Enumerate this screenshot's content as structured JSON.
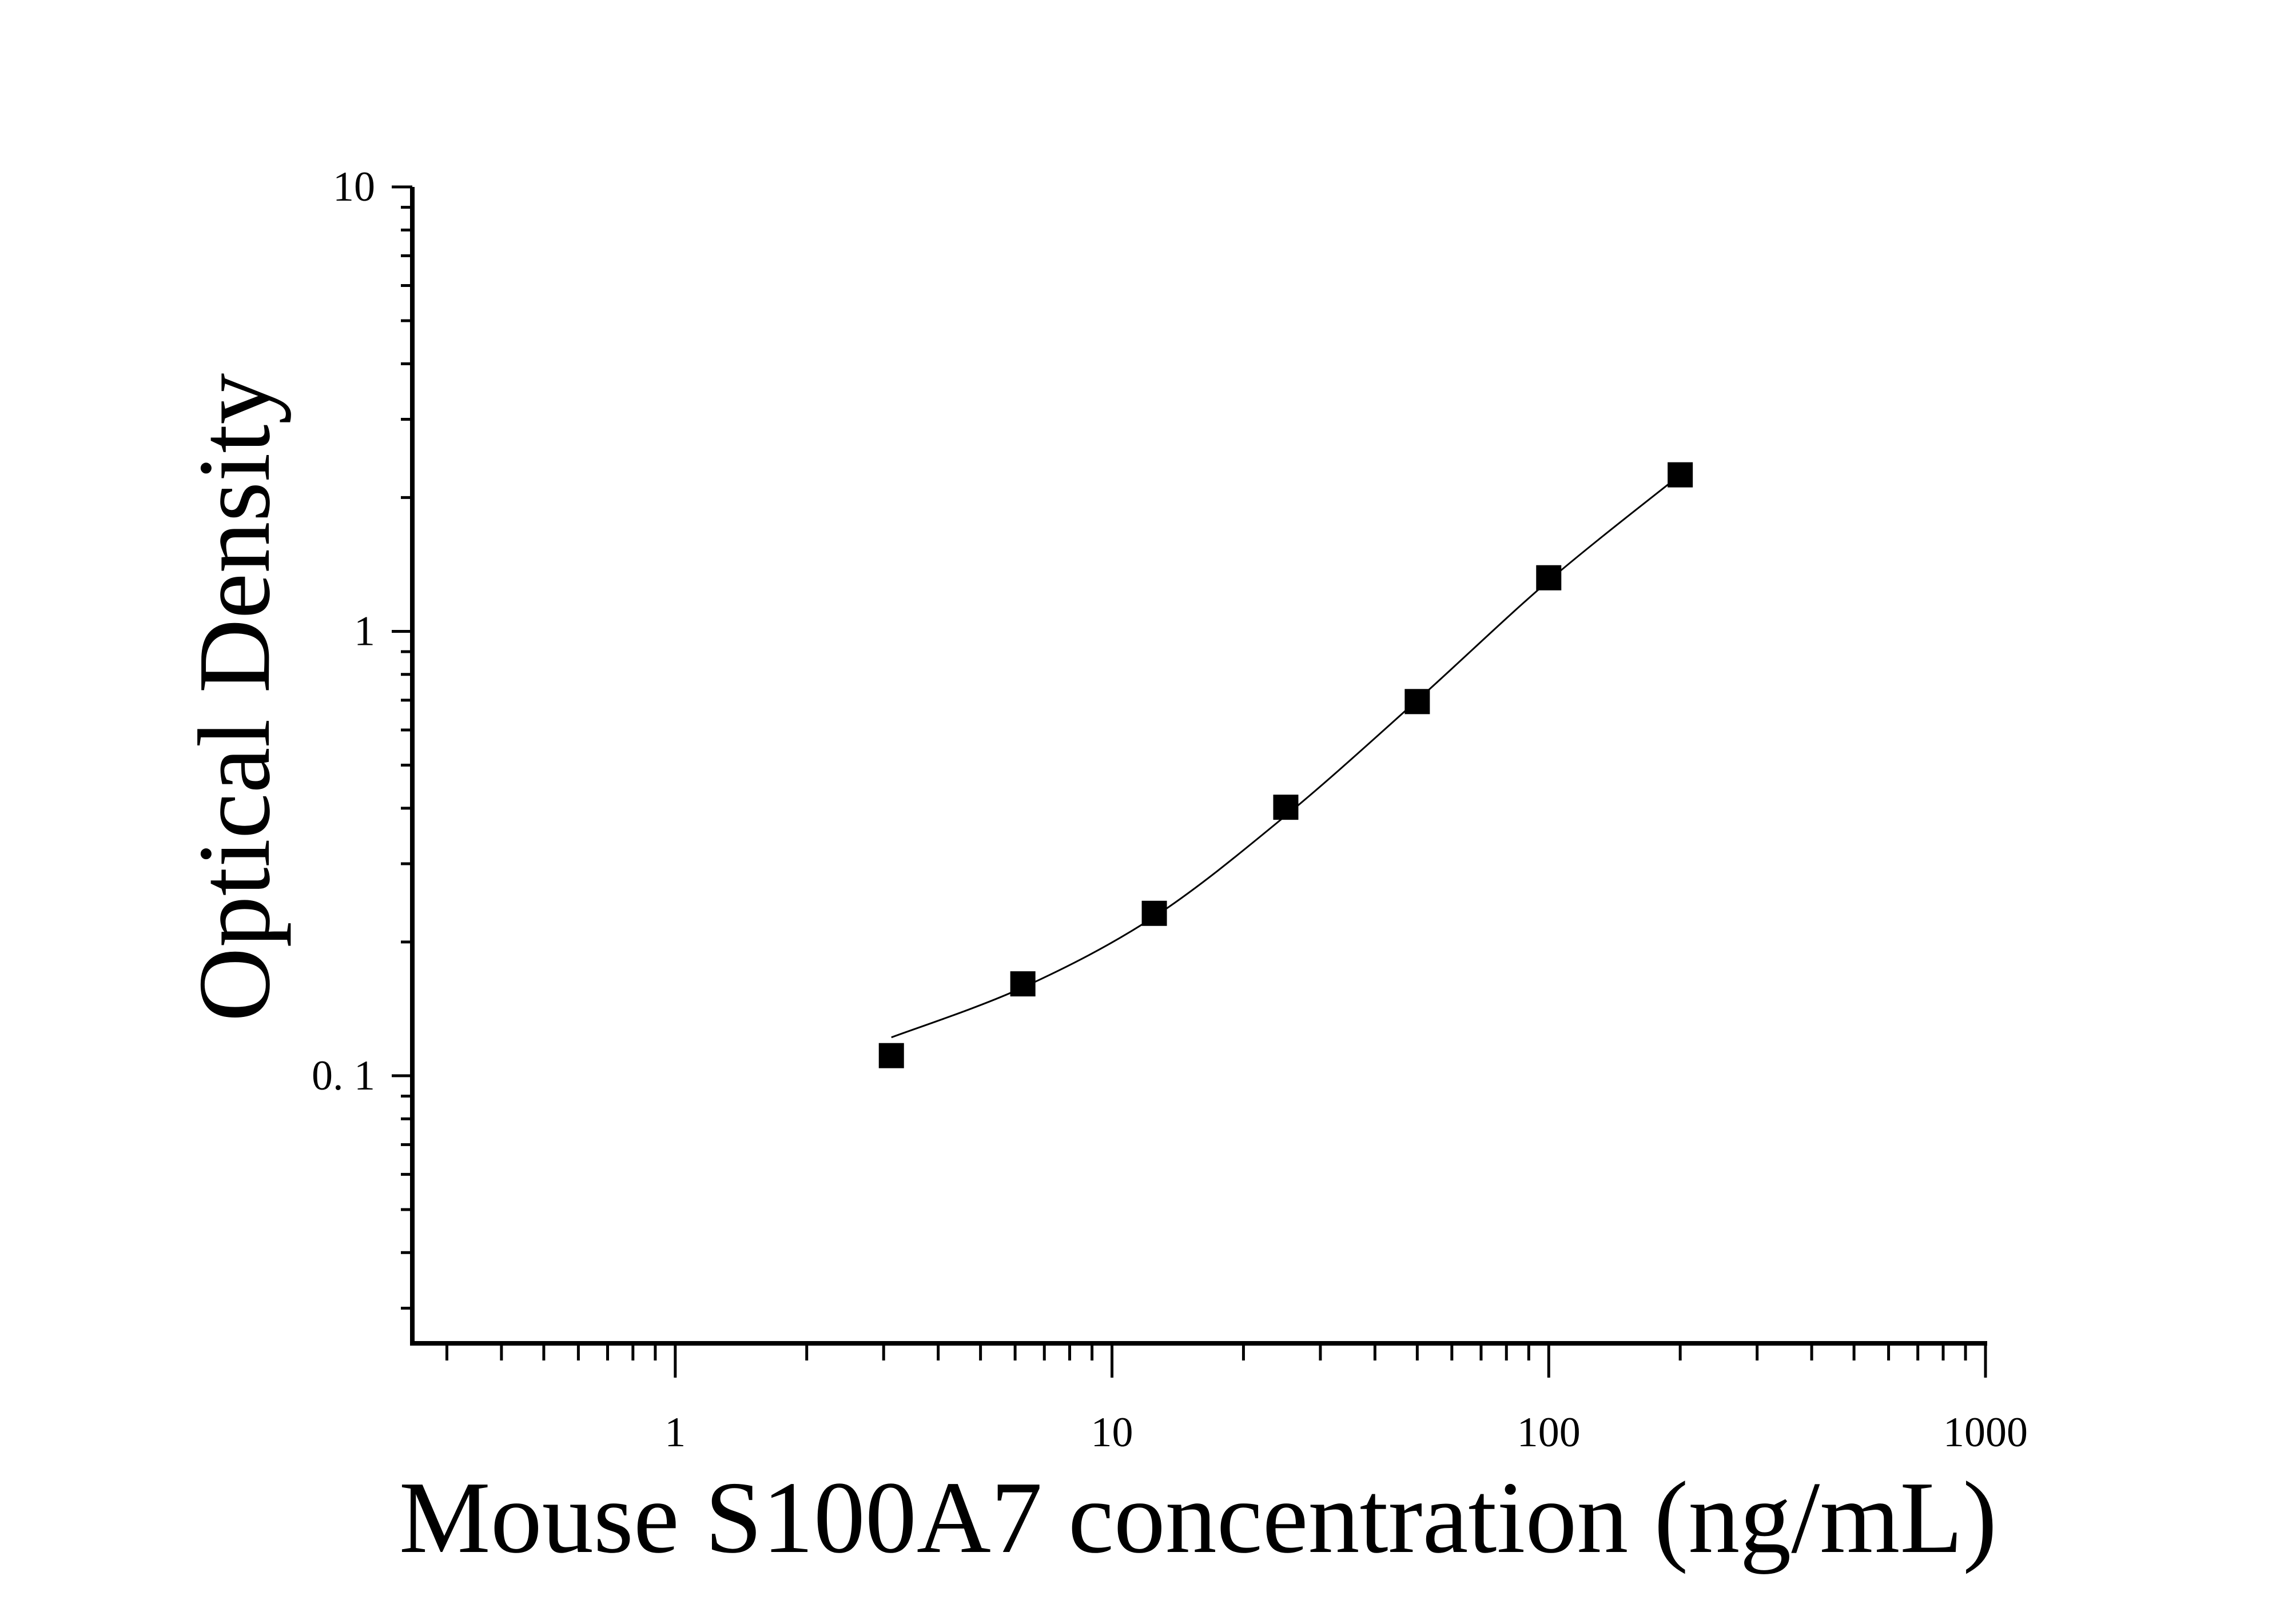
{
  "chart_data": {
    "type": "scatter",
    "title": "",
    "xlabel": "Mouse S100A7 concentration (ng/mL)",
    "ylabel": "Optical Density",
    "x_scale": "log",
    "y_scale": "log",
    "xlim": [
      0.25,
      1000
    ],
    "ylim": [
      0.025,
      10
    ],
    "x_ticks": [
      {
        "value": 1,
        "label": "1"
      },
      {
        "value": 10,
        "label": "10"
      },
      {
        "value": 100,
        "label": "100"
      },
      {
        "value": 1000,
        "label": "1000"
      }
    ],
    "y_ticks": [
      {
        "value": 0.1,
        "label": "0. 1"
      },
      {
        "value": 1,
        "label": "1"
      },
      {
        "value": 10,
        "label": "10"
      }
    ],
    "grid": false,
    "legend": "none",
    "marker": "square",
    "color": "#000000",
    "series": [
      {
        "x": [
          3.125,
          6.25,
          12.5,
          25,
          50,
          100,
          200
        ],
        "y": [
          0.111,
          0.161,
          0.232,
          0.402,
          0.695,
          1.32,
          2.25
        ]
      }
    ],
    "fit_curve": {
      "x": [
        3.125,
        6.25,
        12.5,
        25,
        50,
        100,
        200
      ],
      "y": [
        0.122,
        0.158,
        0.228,
        0.385,
        0.7,
        1.3,
        2.25
      ]
    }
  }
}
